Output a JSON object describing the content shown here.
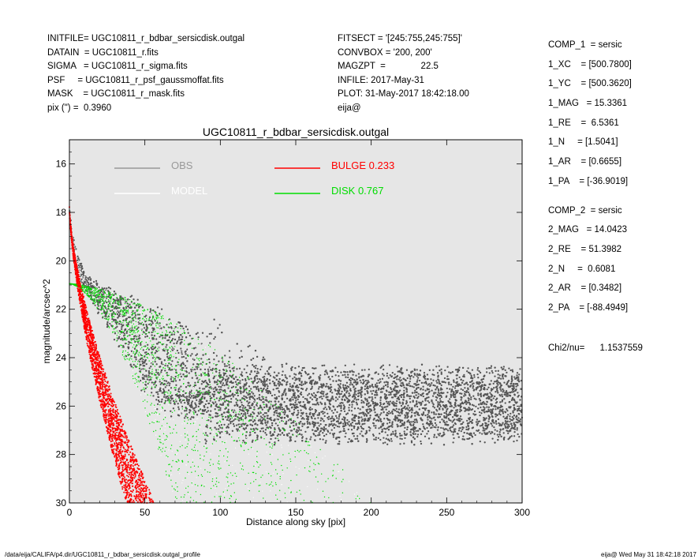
{
  "header_left": [
    "INITFILE= UGC10811_r_bdbar_sersicdisk.outgal",
    "DATAIN  = UGC10811_r.fits",
    "SIGMA   = UGC10811_r_sigma.fits",
    "PSF     = UGC10811_r_psf_gaussmoffat.fits",
    "MASK    = UGC10811_r_mask.fits",
    "pix (\") =  0.3960"
  ],
  "header_mid": [
    "FITSECT = '[245:755,245:755]'",
    "CONVBOX = '200, 200'",
    "MAGZPT  =              22.5",
    "INFILE: 2017-May-31",
    "PLOT: 31-May-2017 18:42:18.00",
    "eija@"
  ],
  "comp1": [
    "COMP_1  = sersic",
    "1_XC    = [500.7800]",
    "1_YC    = [500.3620]",
    "1_MAG   = 15.3361",
    "1_RE    =  6.5361",
    "1_N     = [1.5041]",
    "1_AR    = [0.6655]",
    "1_PA    = [-36.9019]"
  ],
  "comp2": [
    "COMP_2  = sersic",
    "2_MAG   = 14.0423",
    "2_RE    = 51.3982",
    "2_N     =  0.6081",
    "2_AR    = [0.3482]",
    "2_PA    = [-88.4949]"
  ],
  "chi2": "Chi2/nu=      1.1537559",
  "footer_left": "/data/eija/CALIFA/p4.dir/UGC10811_r_bdbar_sersicdisk.outgal_profile",
  "footer_right": "eija@  Wed May 31 18:42:18 2017",
  "chart_data": {
    "type": "scatter",
    "title": "UGC10811_r_bdbar_sersicdisk.outgal",
    "xlabel": "Distance along sky [pix]",
    "ylabel": "magnitude/arcsec^2",
    "xlim": [
      0,
      300
    ],
    "ylim": [
      30,
      15
    ],
    "y_inverted": true,
    "xticks": [
      0,
      50,
      100,
      150,
      200,
      250,
      300
    ],
    "yticks": [
      16,
      18,
      20,
      22,
      24,
      26,
      28,
      30
    ],
    "background": "#e6e6e6",
    "legend": [
      {
        "name": "OBS",
        "color": "#999999",
        "text_color": "#999999"
      },
      {
        "name": "MODEL",
        "color": "#ffffff",
        "text_color": "#ffffff"
      },
      {
        "name": "BULGE  0.233",
        "color": "#ff0000",
        "text_color": "#ff0000"
      },
      {
        "name": "DISK  0.767",
        "color": "#00dd00",
        "text_color": "#00dd00"
      }
    ],
    "components": {
      "bulge": {
        "mag": 15.3361,
        "re": 6.5361,
        "n": 1.5041,
        "ar": 0.6655,
        "color": "#ff0000"
      },
      "disk": {
        "mag": 14.0423,
        "re": 51.3982,
        "n": 0.6081,
        "ar": 0.3482,
        "color": "#00dd00"
      }
    },
    "obs_color": "#555555",
    "model_color": "#ffffff"
  }
}
